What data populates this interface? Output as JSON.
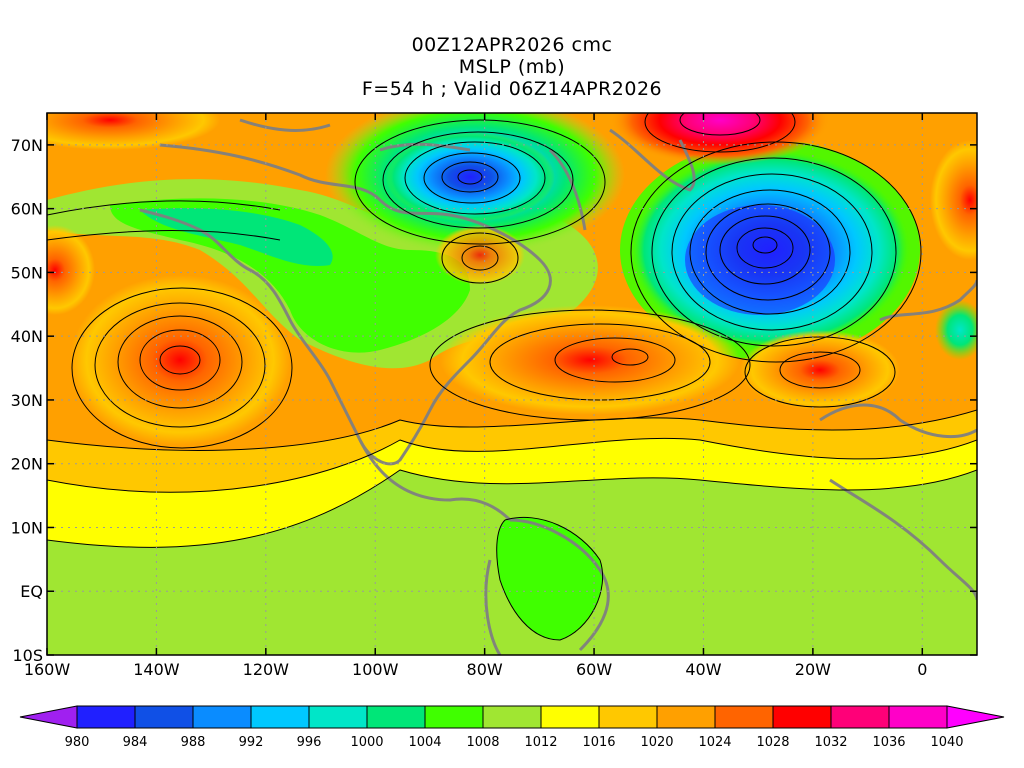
{
  "header": {
    "run": "00Z12APR2026 cmc",
    "field": "MSLP (mb)",
    "valid": "F=54 h ; Valid 06Z14APR2026"
  },
  "axes": {
    "lat_labels": [
      "70N",
      "60N",
      "50N",
      "40N",
      "30N",
      "20N",
      "10N",
      "EQ",
      "10S"
    ],
    "lat_values": [
      70,
      60,
      50,
      40,
      30,
      20,
      10,
      0,
      -10
    ],
    "lon_labels": [
      "160W",
      "140W",
      "120W",
      "100W",
      "80W",
      "60W",
      "40W",
      "20W",
      "0"
    ],
    "lon_values": [
      -160,
      -140,
      -120,
      -100,
      -80,
      -60,
      -40,
      -20,
      0
    ],
    "lon_range": [
      -160,
      10
    ],
    "lat_range": [
      -10,
      75
    ],
    "grid": "dotted"
  },
  "colorbar": {
    "levels": [
      "980",
      "984",
      "988",
      "992",
      "996",
      "1000",
      "1004",
      "1008",
      "1012",
      "1016",
      "1020",
      "1024",
      "1028",
      "1032",
      "1036",
      "1040"
    ],
    "colors": [
      "#a020f0",
      "#2020ff",
      "#1050e6",
      "#0a8cff",
      "#00c8ff",
      "#00e6c8",
      "#00e678",
      "#40ff00",
      "#a0e632",
      "#ffff00",
      "#ffc800",
      "#ffa000",
      "#ff6400",
      "#ff0000",
      "#ff0078",
      "#ff00c8",
      "#ff00ff"
    ]
  },
  "pressure_centers": [
    {
      "type": "low",
      "lon": -83,
      "lat": 65,
      "value": 982
    },
    {
      "type": "low",
      "lon": -29,
      "lat": 54,
      "value": 982
    },
    {
      "type": "high",
      "lon": -134,
      "lat": 37,
      "value": 1029
    },
    {
      "type": "high",
      "lon": -53,
      "lat": 37,
      "value": 1029
    },
    {
      "type": "high",
      "lon": -17,
      "lat": 33,
      "value": 1027
    },
    {
      "type": "high",
      "lon": -35,
      "lat": 74,
      "value": 1037
    },
    {
      "type": "high",
      "lon": -150,
      "lat": 74,
      "value": 1027
    }
  ]
}
